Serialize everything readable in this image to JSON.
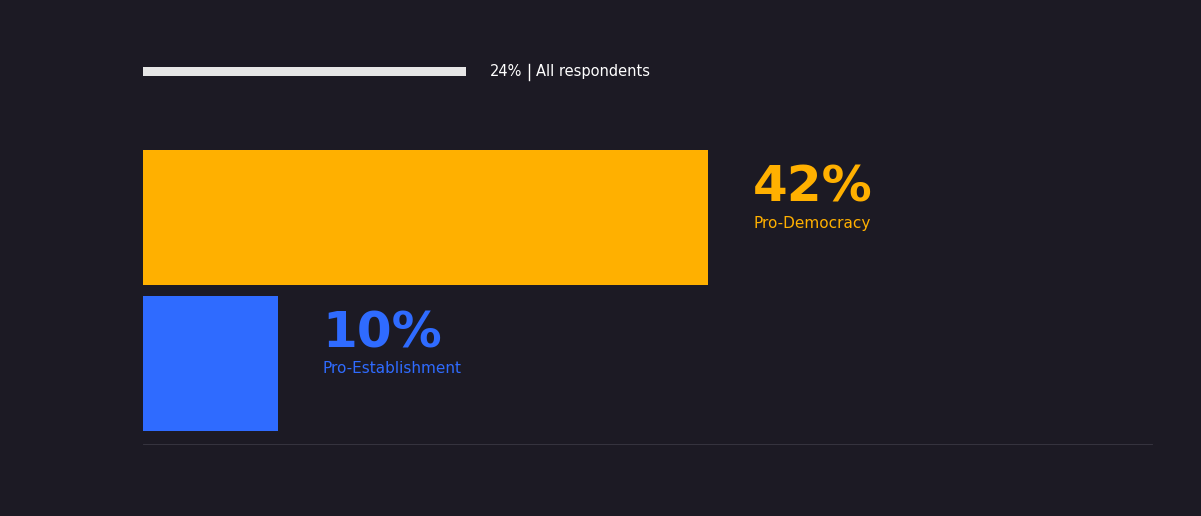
{
  "chart_data": {
    "type": "bar",
    "orientation": "horizontal",
    "categories": [
      "All respondents",
      "Pro-Democracy",
      "Pro-Establishment"
    ],
    "values": [
      24,
      42,
      10
    ],
    "value_labels": [
      "24%",
      "42%",
      "10%"
    ],
    "colors": [
      "#e6e6e6",
      "#ffb000",
      "#2f6bff"
    ],
    "xlim": [
      0,
      75
    ],
    "xticks": [],
    "tick_labels": false,
    "data_labels": true
  }
}
